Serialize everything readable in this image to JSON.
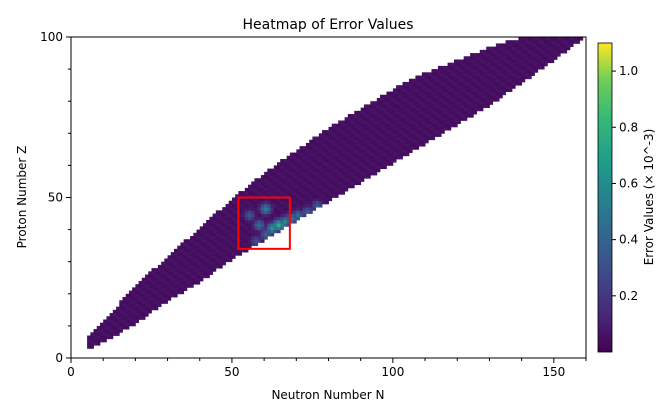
{
  "chart_data": {
    "type": "heatmap",
    "title": "Heatmap of Error Values",
    "xlabel": "Neutron Number N",
    "ylabel": "Proton Number Z",
    "xlim": [
      0,
      160
    ],
    "ylim": [
      0,
      100
    ],
    "x_ticks": [
      0,
      50,
      100,
      150
    ],
    "y_ticks": [
      0,
      50,
      100
    ],
    "colorbar": {
      "label": "Error Values (× 10^-3)",
      "range": [
        0.0,
        1.1
      ],
      "ticks": [
        0.2,
        0.4,
        0.6,
        0.8,
        1.0
      ],
      "tick_labels": [
        "0.2",
        "0.4",
        "0.6",
        "0.8",
        "1.0"
      ],
      "colormap": "viridis"
    },
    "band": {
      "description_points_N": [
        5,
        10,
        20,
        30,
        40,
        50,
        60,
        70,
        80,
        90,
        100,
        110,
        120,
        130,
        140,
        150,
        158
      ],
      "z_min": [
        3,
        5,
        11,
        18,
        24,
        31,
        37,
        43,
        49,
        55,
        61,
        67,
        73,
        79,
        86,
        93,
        99
      ],
      "z_max": [
        6,
        11,
        22,
        31,
        40,
        49,
        57,
        64,
        71,
        77,
        83,
        88,
        92,
        96,
        99,
        100,
        100
      ],
      "typical_error": 0.05
    },
    "hotspots": [
      {
        "N": 55,
        "Z": 44,
        "value": 0.35
      },
      {
        "N": 58,
        "Z": 41,
        "value": 0.45
      },
      {
        "N": 60,
        "Z": 46,
        "value": 0.55
      },
      {
        "N": 62,
        "Z": 40,
        "value": 0.65
      },
      {
        "N": 64,
        "Z": 41,
        "value": 0.8
      },
      {
        "N": 66,
        "Z": 42,
        "value": 0.6
      },
      {
        "N": 68,
        "Z": 43,
        "value": 0.5
      },
      {
        "N": 70,
        "Z": 44,
        "value": 0.45
      },
      {
        "N": 73,
        "Z": 45,
        "value": 0.4
      },
      {
        "N": 76,
        "Z": 47,
        "value": 0.35
      },
      {
        "N": 60,
        "Z": 38,
        "value": 0.4
      },
      {
        "N": 57,
        "Z": 36,
        "value": 0.3
      }
    ],
    "highlight_box": {
      "N_range": [
        52,
        68
      ],
      "Z_range": [
        34,
        50
      ],
      "color": "#ff0000"
    }
  }
}
